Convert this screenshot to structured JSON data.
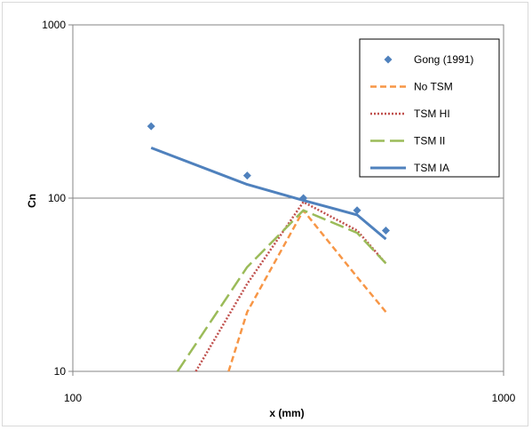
{
  "chart_data": {
    "type": "scatter",
    "title": "",
    "xlabel": "x (mm)",
    "ylabel": "Cn",
    "x_scale": "log",
    "y_scale": "log",
    "xlim": [
      100,
      1000
    ],
    "ylim": [
      10,
      1000
    ],
    "x_ticks": [
      "100",
      "1000"
    ],
    "y_ticks": [
      "10",
      "100",
      "1000"
    ],
    "grid": "horizontal major gridlines",
    "legend_position": "top-right",
    "series": [
      {
        "name": "Gong (1991)",
        "kind": "markers",
        "marker": "diamond",
        "color": "#4f81bd",
        "x": [
          152,
          254,
          343,
          457,
          533
        ],
        "y": [
          260,
          135,
          100,
          85,
          65
        ]
      },
      {
        "name": "No TSM",
        "kind": "line",
        "dash": "dashed",
        "color": "#f79646",
        "x": [
          230,
          254,
          343,
          457,
          533
        ],
        "y": [
          10,
          22,
          85,
          35,
          22
        ]
      },
      {
        "name": "TSM HI",
        "kind": "line",
        "dash": "dotted",
        "color": "#c0504d",
        "x": [
          193,
          254,
          343,
          457,
          533
        ],
        "y": [
          10,
          32,
          95,
          65,
          42
        ]
      },
      {
        "name": "TSM II",
        "kind": "line",
        "dash": "long-dash",
        "color": "#9bbb59",
        "x": [
          175,
          254,
          343,
          457,
          533
        ],
        "y": [
          10,
          40,
          85,
          63,
          42
        ]
      },
      {
        "name": "TSM IA",
        "kind": "line",
        "dash": "solid",
        "color": "#4f81bd",
        "x": [
          152,
          254,
          343,
          457,
          533
        ],
        "y": [
          195,
          120,
          97,
          80,
          58
        ]
      }
    ]
  }
}
